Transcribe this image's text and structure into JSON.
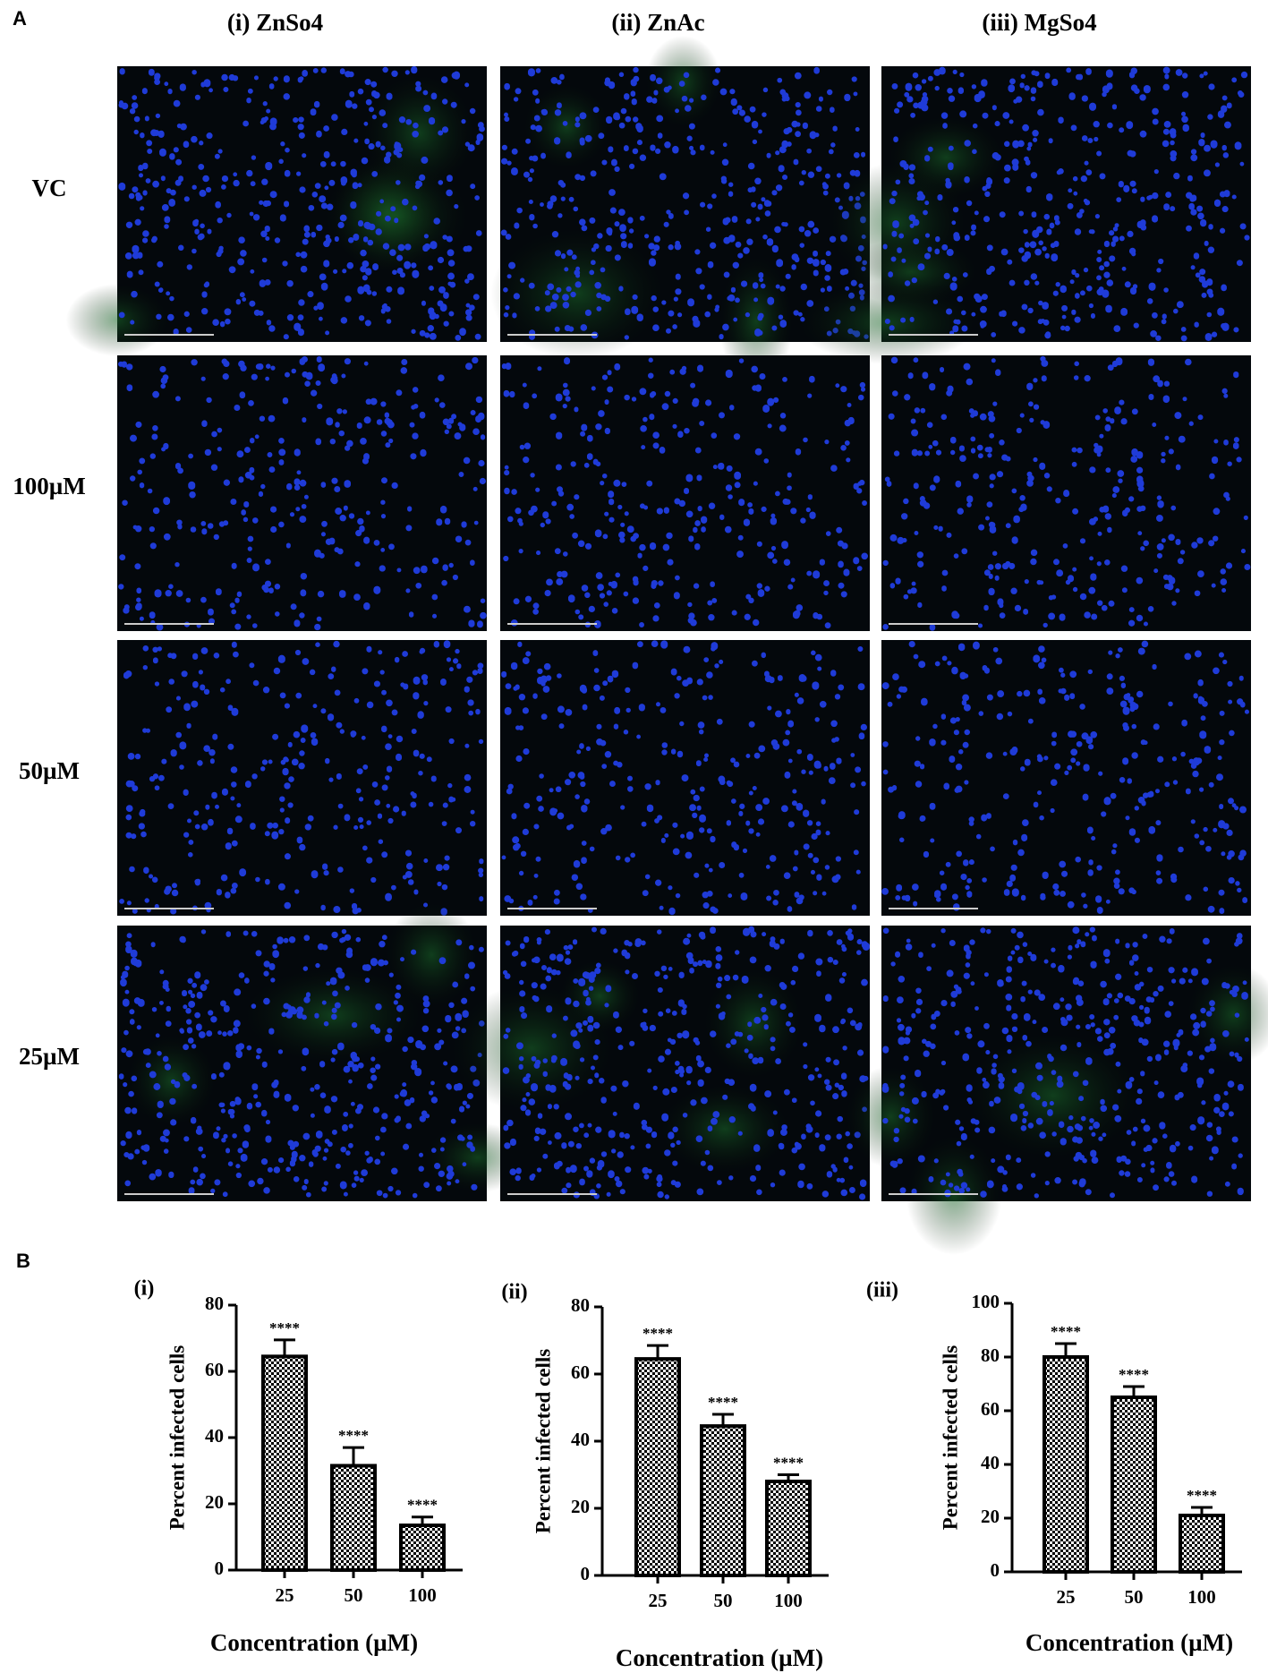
{
  "panel_a": {
    "label": "A",
    "columns": [
      "(i) ZnSo4",
      "(ii) ZnAc",
      "(iii) MgSo4"
    ],
    "rows": [
      "VC",
      "100µM",
      "50µM",
      "25µM"
    ]
  },
  "panel_b": {
    "label": "B"
  },
  "chart_data": [
    {
      "type": "bar",
      "title": "(i)",
      "y_label": "Percent infected cells",
      "x_label": "Concentration (µM)",
      "categories": [
        "25",
        "50",
        "100"
      ],
      "values": [
        64.5,
        31.5,
        13.5
      ],
      "errors": [
        5,
        5.5,
        2.5
      ],
      "annotations": [
        "****",
        "****",
        "****"
      ],
      "ylim": [
        0,
        80
      ],
      "yticks": [
        0,
        20,
        40,
        60,
        80
      ]
    },
    {
      "type": "bar",
      "title": "(ii)",
      "y_label": "Percent infected cells",
      "x_label": "Concentration (µM)",
      "categories": [
        "25",
        "50",
        "100"
      ],
      "values": [
        64.5,
        44.5,
        28
      ],
      "errors": [
        4,
        3.5,
        2
      ],
      "annotations": [
        "****",
        "****",
        "****"
      ],
      "ylim": [
        0,
        80
      ],
      "yticks": [
        0,
        20,
        40,
        60,
        80
      ]
    },
    {
      "type": "bar",
      "title": "(iii)",
      "y_label": "Percent infected cells",
      "x_label": "Concentration (µM)",
      "categories": [
        "25",
        "50",
        "100"
      ],
      "values": [
        80,
        65,
        21
      ],
      "errors": [
        5,
        4,
        3
      ],
      "annotations": [
        "****",
        "****",
        "****"
      ],
      "ylim": [
        0,
        100
      ],
      "yticks": [
        0,
        20,
        40,
        60,
        80,
        100
      ]
    }
  ]
}
